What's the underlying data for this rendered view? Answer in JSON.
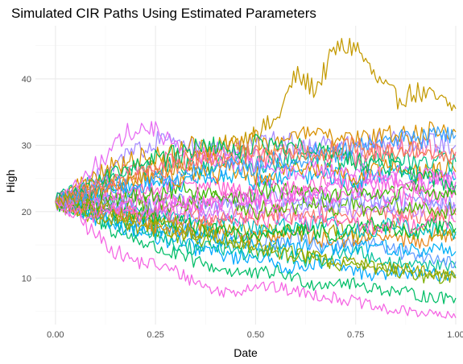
{
  "chart_data": {
    "type": "line",
    "title": "Simulated CIR Paths Using Estimated Parameters",
    "xlabel": "Date",
    "ylabel": "High",
    "xlim": [
      -0.05,
      1.0
    ],
    "ylim": [
      3,
      48
    ],
    "x_ticks": [
      0.0,
      0.25,
      0.5,
      0.75,
      1.0
    ],
    "x_tick_labels": [
      "0.00",
      "0.25",
      "0.50",
      "0.75",
      "1.00"
    ],
    "y_ticks": [
      10,
      20,
      30,
      40
    ],
    "y_tick_labels": [
      "10",
      "20",
      "30",
      "40"
    ],
    "grid": true,
    "legend": "none",
    "x": [
      0.0,
      0.05,
      0.1,
      0.15,
      0.2,
      0.25,
      0.3,
      0.35,
      0.4,
      0.45,
      0.5,
      0.55,
      0.6,
      0.65,
      0.7,
      0.75,
      0.8,
      0.85,
      0.9,
      0.95,
      1.0
    ],
    "series": [
      {
        "color": "#c49a00",
        "values": [
          21.5,
          22.5,
          23.0,
          24.5,
          25.0,
          26.5,
          27.0,
          28.0,
          29.5,
          30.5,
          32.0,
          33.5,
          40.5,
          38.5,
          44.5,
          45.0,
          40.0,
          37.0,
          38.0,
          37.0,
          35.5
        ]
      },
      {
        "color": "#f564e3",
        "values": [
          21.5,
          19.5,
          16.5,
          14.0,
          12.5,
          12.0,
          11.0,
          9.5,
          8.0,
          8.0,
          9.0,
          8.5,
          8.0,
          7.5,
          7.0,
          6.5,
          5.5,
          5.0,
          5.0,
          4.5,
          4.0
        ]
      },
      {
        "color": "#00be67",
        "values": [
          21.5,
          20.0,
          19.0,
          17.0,
          16.0,
          14.5,
          13.5,
          12.5,
          11.5,
          11.0,
          10.5,
          11.0,
          10.0,
          9.0,
          9.5,
          9.0,
          8.5,
          8.0,
          7.5,
          7.0,
          7.0
        ]
      },
      {
        "color": "#00a9ff",
        "values": [
          21.5,
          20.5,
          19.0,
          18.0,
          17.5,
          16.0,
          15.5,
          14.5,
          14.0,
          13.0,
          13.5,
          12.0,
          11.5,
          12.5,
          12.0,
          11.0,
          10.5,
          11.0,
          10.5,
          10.5,
          10.5
        ]
      },
      {
        "color": "#7cae00",
        "values": [
          21.5,
          21.0,
          20.0,
          19.0,
          18.0,
          17.5,
          16.5,
          16.0,
          15.5,
          15.0,
          14.0,
          14.5,
          13.5,
          13.0,
          12.0,
          12.5,
          11.5,
          11.0,
          10.5,
          10.0,
          10.0
        ]
      },
      {
        "color": "#00c19a",
        "values": [
          21.5,
          21.5,
          19.5,
          18.0,
          17.0,
          16.5,
          15.0,
          14.5,
          15.0,
          14.0,
          13.5,
          14.0,
          13.0,
          12.5,
          13.5,
          14.0,
          13.0,
          12.0,
          12.5,
          12.0,
          11.5
        ]
      },
      {
        "color": "#619cff",
        "values": [
          21.5,
          22.0,
          21.0,
          20.0,
          19.0,
          18.5,
          18.0,
          17.0,
          16.5,
          17.0,
          16.0,
          15.5,
          16.0,
          15.0,
          14.5,
          15.5,
          15.0,
          14.0,
          13.5,
          13.0,
          12.5
        ]
      },
      {
        "color": "#00b0f6",
        "values": [
          21.5,
          20.5,
          20.0,
          19.0,
          18.5,
          17.5,
          17.0,
          16.5,
          16.0,
          15.5,
          15.0,
          15.5,
          14.5,
          15.0,
          14.0,
          14.5,
          15.0,
          14.5,
          14.0,
          14.5,
          14.0
        ]
      },
      {
        "color": "#e7861b",
        "values": [
          21.5,
          21.0,
          20.5,
          19.5,
          19.0,
          18.0,
          17.5,
          18.0,
          17.0,
          16.5,
          16.0,
          16.5,
          17.0,
          16.0,
          15.5,
          16.0,
          16.5,
          16.0,
          15.5,
          16.5,
          16.0
        ]
      },
      {
        "color": "#aba300",
        "values": [
          21.5,
          20.0,
          19.5,
          19.0,
          18.0,
          17.5,
          17.0,
          16.5,
          17.5,
          18.0,
          17.0,
          17.5,
          16.5,
          17.0,
          17.5,
          16.5,
          17.0,
          17.5,
          16.5,
          17.0,
          16.5
        ]
      },
      {
        "color": "#00bfc4",
        "values": [
          21.5,
          22.0,
          21.5,
          21.0,
          20.0,
          19.5,
          19.0,
          18.5,
          18.0,
          18.5,
          17.5,
          18.0,
          17.5,
          18.5,
          18.0,
          17.0,
          17.5,
          18.0,
          17.0,
          17.5,
          17.0
        ]
      },
      {
        "color": "#00ba38",
        "values": [
          21.5,
          21.0,
          20.5,
          20.0,
          19.5,
          19.0,
          18.5,
          18.0,
          17.0,
          16.5,
          17.0,
          16.5,
          17.5,
          17.0,
          16.5,
          17.5,
          18.0,
          17.5,
          17.0,
          18.0,
          17.5
        ]
      },
      {
        "color": "#ff61c3",
        "values": [
          21.5,
          22.5,
          21.5,
          20.5,
          21.0,
          20.0,
          19.5,
          20.5,
          19.0,
          18.5,
          19.5,
          18.5,
          19.0,
          18.0,
          19.0,
          18.5,
          17.5,
          18.5,
          18.0,
          19.0,
          18.5
        ]
      },
      {
        "color": "#f8766d",
        "values": [
          21.5,
          20.5,
          21.0,
          20.0,
          19.5,
          20.5,
          19.0,
          19.5,
          18.5,
          19.5,
          19.0,
          20.0,
          19.0,
          19.5,
          20.0,
          19.0,
          20.0,
          19.5,
          19.0,
          20.0,
          19.5
        ]
      },
      {
        "color": "#c77cff",
        "values": [
          21.5,
          21.5,
          22.0,
          21.0,
          20.5,
          21.0,
          20.5,
          19.5,
          20.5,
          20.0,
          21.0,
          20.5,
          19.5,
          20.5,
          21.0,
          20.0,
          21.0,
          20.5,
          20.0,
          21.0,
          20.0
        ]
      },
      {
        "color": "#53b400",
        "values": [
          21.5,
          22.0,
          21.0,
          22.0,
          21.5,
          20.5,
          21.5,
          21.0,
          22.0,
          21.0,
          20.0,
          21.0,
          20.5,
          21.5,
          20.5,
          21.0,
          20.0,
          21.0,
          20.5,
          20.0,
          20.5
        ]
      },
      {
        "color": "#8494ff",
        "values": [
          21.5,
          22.0,
          22.5,
          21.5,
          22.0,
          21.0,
          22.0,
          21.5,
          21.0,
          22.0,
          21.5,
          22.5,
          21.5,
          22.0,
          21.0,
          22.0,
          21.5,
          21.0,
          22.0,
          21.5,
          21.0
        ]
      },
      {
        "color": "#fb61d7",
        "values": [
          21.5,
          21.0,
          22.0,
          21.5,
          22.5,
          22.0,
          21.0,
          22.0,
          21.5,
          22.5,
          22.0,
          21.5,
          22.5,
          23.0,
          22.0,
          22.5,
          23.0,
          22.0,
          22.5,
          22.0,
          22.5
        ]
      },
      {
        "color": "#39b600",
        "values": [
          21.5,
          22.5,
          23.0,
          22.0,
          23.0,
          22.5,
          23.5,
          22.5,
          23.0,
          22.0,
          23.0,
          23.5,
          22.5,
          23.0,
          22.5,
          23.5,
          23.0,
          22.5,
          23.5,
          23.0,
          22.5
        ]
      },
      {
        "color": "#fd61d1",
        "values": [
          21.5,
          22.0,
          23.5,
          23.0,
          24.0,
          23.5,
          24.5,
          23.5,
          24.0,
          23.0,
          24.0,
          24.5,
          23.5,
          24.0,
          25.0,
          24.0,
          24.5,
          23.5,
          24.0,
          24.5,
          24.0
        ]
      },
      {
        "color": "#00b4ef",
        "values": [
          21.5,
          22.5,
          23.0,
          24.0,
          24.5,
          25.0,
          24.0,
          25.0,
          24.5,
          25.5,
          24.5,
          25.0,
          26.0,
          25.0,
          25.5,
          24.5,
          25.5,
          26.0,
          25.0,
          25.5,
          25.0
        ]
      },
      {
        "color": "#de8c00",
        "values": [
          21.5,
          23.0,
          23.5,
          24.5,
          25.0,
          26.0,
          25.0,
          26.0,
          25.5,
          26.5,
          25.5,
          26.0,
          27.0,
          26.0,
          26.5,
          25.5,
          26.5,
          27.0,
          26.0,
          26.5,
          26.0
        ]
      },
      {
        "color": "#00c08b",
        "values": [
          21.5,
          23.0,
          24.5,
          25.0,
          26.0,
          26.5,
          27.5,
          26.5,
          27.0,
          28.0,
          27.0,
          27.5,
          28.5,
          27.5,
          28.0,
          27.0,
          28.0,
          28.5,
          27.5,
          28.0,
          27.5
        ]
      },
      {
        "color": "#ff6a98",
        "values": [
          21.5,
          22.5,
          24.0,
          25.5,
          26.5,
          27.0,
          28.0,
          27.0,
          28.5,
          29.0,
          28.0,
          28.5,
          29.5,
          28.5,
          29.0,
          28.0,
          29.5,
          30.0,
          29.0,
          29.5,
          29.0
        ]
      },
      {
        "color": "#a58aff",
        "values": [
          21.5,
          23.0,
          25.0,
          27.0,
          29.0,
          30.5,
          31.0,
          29.5,
          30.0,
          29.0,
          30.0,
          31.0,
          30.0,
          29.5,
          30.5,
          29.5,
          30.5,
          31.0,
          30.0,
          30.5,
          30.0
        ]
      },
      {
        "color": "#d89000",
        "values": [
          21.5,
          23.5,
          25.5,
          27.0,
          28.0,
          28.5,
          29.0,
          30.0,
          29.0,
          30.5,
          31.0,
          30.0,
          31.0,
          32.0,
          30.5,
          31.5,
          31.0,
          32.0,
          31.5,
          32.5,
          32.0
        ]
      },
      {
        "color": "#e76bf3",
        "values": [
          21.5,
          24.0,
          27.0,
          30.0,
          33.0,
          32.0,
          30.0,
          29.0,
          28.0,
          27.5,
          27.0,
          26.5,
          26.0,
          26.5,
          25.5,
          26.0,
          25.5,
          26.0,
          25.0,
          25.5,
          25.0
        ]
      },
      {
        "color": "#00bd5c",
        "values": [
          21.5,
          22.5,
          24.0,
          25.5,
          27.0,
          28.0,
          28.5,
          29.5,
          30.0,
          29.0,
          30.5,
          29.5,
          30.0,
          29.0,
          28.5,
          27.5,
          27.0,
          26.5,
          25.5,
          25.0,
          24.0
        ]
      },
      {
        "color": "#35a2ff",
        "values": [
          21.5,
          22.0,
          23.0,
          24.0,
          23.5,
          25.0,
          24.5,
          26.0,
          25.5,
          27.0,
          26.5,
          28.0,
          27.5,
          29.0,
          28.5,
          30.0,
          29.5,
          31.0,
          30.5,
          32.0,
          31.5
        ]
      },
      {
        "color": "#f17d50",
        "values": [
          21.5,
          22.5,
          23.5,
          24.5,
          25.5,
          26.0,
          27.0,
          28.0,
          27.5,
          28.5,
          29.0,
          28.0,
          29.0,
          28.5,
          29.5,
          30.0,
          29.0,
          28.5,
          29.5,
          28.0,
          28.5
        ]
      },
      {
        "color": "#9da700",
        "values": [
          21.5,
          21.5,
          20.5,
          20.0,
          19.0,
          18.5,
          18.0,
          17.0,
          16.5,
          15.5,
          15.0,
          14.0,
          13.5,
          13.0,
          12.5,
          12.0,
          11.5,
          11.5,
          11.0,
          10.5,
          10.0
        ]
      },
      {
        "color": "#f066ea",
        "values": [
          21.5,
          20.0,
          19.5,
          20.5,
          19.5,
          20.5,
          21.5,
          20.5,
          21.0,
          22.0,
          21.0,
          22.5,
          22.0,
          23.0,
          24.0,
          23.0,
          24.5,
          25.0,
          24.0,
          25.0,
          24.5
        ]
      }
    ]
  }
}
